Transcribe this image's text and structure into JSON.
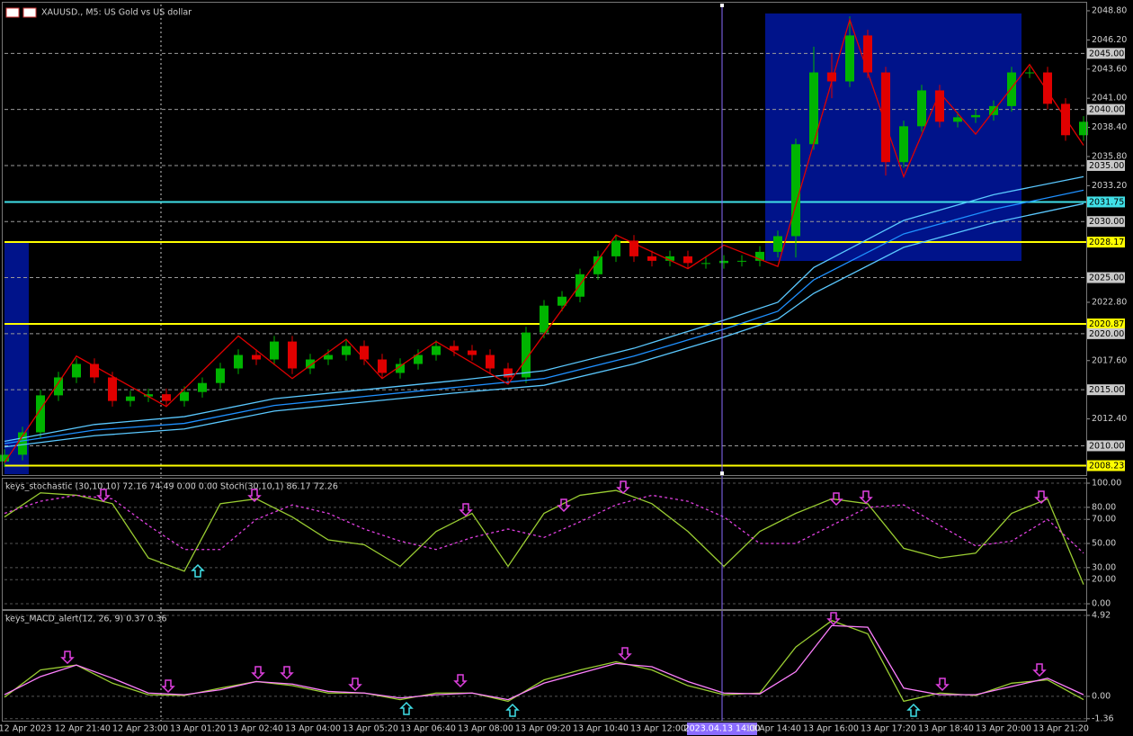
{
  "chart_data": [
    {
      "type": "candlestick",
      "title": "XAUUSD., M5: US Gold vs US dollar",
      "up_color": "#00b400",
      "down_color": "#e00000",
      "open": [
        2008.6,
        2009.2,
        2011.2,
        2014.5,
        2016.1,
        2017.3,
        2016.1,
        2014.0,
        2014.4,
        2014.6,
        2014.0,
        2014.8,
        2015.6,
        2016.9,
        2018.1,
        2017.7,
        2019.3,
        2016.9,
        2017.7,
        2018.1,
        2018.9,
        2017.7,
        2016.5,
        2017.3,
        2018.1,
        2018.9,
        2018.5,
        2018.1,
        2016.9,
        2016.1,
        2020.1,
        2022.5,
        2023.3,
        2025.3,
        2026.9,
        2028.3,
        2026.9,
        2026.5,
        2026.9,
        2026.3,
        2026.3,
        2026.5,
        2026.5,
        2027.3,
        2028.7,
        2036.9,
        2043.3,
        2042.5,
        2046.6,
        2043.3,
        2035.3,
        2038.5,
        2041.7,
        2038.9,
        2039.3,
        2039.5,
        2040.3,
        2043.3,
        2043.3,
        2040.5,
        2037.7
      ],
      "high": [
        2009.7,
        2011.7,
        2015.0,
        2016.6,
        2017.8,
        2017.8,
        2016.6,
        2014.9,
        2015.1,
        2015.1,
        2015.3,
        2016.1,
        2017.4,
        2018.6,
        2018.6,
        2019.8,
        2019.8,
        2018.2,
        2018.6,
        2019.4,
        2019.4,
        2018.2,
        2017.8,
        2018.6,
        2019.4,
        2019.4,
        2019.0,
        2018.6,
        2017.4,
        2020.6,
        2023.0,
        2023.8,
        2025.8,
        2027.4,
        2028.8,
        2028.8,
        2027.4,
        2027.4,
        2027.4,
        2026.8,
        2027.0,
        2027.0,
        2027.8,
        2029.2,
        2037.4,
        2045.6,
        2045.0,
        2048.3,
        2047.1,
        2043.8,
        2039.0,
        2042.2,
        2042.2,
        2039.8,
        2040.0,
        2040.8,
        2043.8,
        2043.8,
        2043.8,
        2041.0,
        2039.4
      ],
      "low": [
        2008.1,
        2008.7,
        2010.7,
        2014.0,
        2015.6,
        2015.6,
        2013.5,
        2013.5,
        2013.9,
        2013.5,
        2013.5,
        2014.3,
        2015.1,
        2016.4,
        2017.2,
        2017.2,
        2016.4,
        2016.4,
        2017.2,
        2017.6,
        2017.2,
        2016.0,
        2016.0,
        2016.8,
        2017.6,
        2018.0,
        2017.6,
        2016.4,
        2015.6,
        2015.6,
        2019.6,
        2022.0,
        2022.8,
        2024.8,
        2026.4,
        2026.4,
        2026.0,
        2026.0,
        2025.8,
        2025.8,
        2025.8,
        2026.0,
        2026.0,
        2026.8,
        2026.8,
        2036.4,
        2041.0,
        2042.0,
        2042.8,
        2034.1,
        2034.8,
        2038.0,
        2038.4,
        2038.4,
        2038.8,
        2039.0,
        2039.8,
        2042.8,
        2040.0,
        2037.2,
        2037.2
      ],
      "close": [
        2009.2,
        2011.2,
        2014.5,
        2016.1,
        2017.3,
        2016.1,
        2014.0,
        2014.4,
        2014.6,
        2014.0,
        2014.8,
        2015.6,
        2016.9,
        2018.1,
        2017.7,
        2019.3,
        2016.9,
        2017.7,
        2018.1,
        2018.9,
        2017.7,
        2016.5,
        2017.3,
        2018.1,
        2018.9,
        2018.5,
        2018.1,
        2016.9,
        2016.1,
        2020.1,
        2022.5,
        2023.3,
        2025.3,
        2026.9,
        2028.3,
        2026.9,
        2026.5,
        2026.9,
        2026.3,
        2026.3,
        2026.5,
        2026.5,
        2027.3,
        2028.7,
        2036.9,
        2043.3,
        2042.5,
        2046.6,
        2043.3,
        2035.3,
        2038.5,
        2041.7,
        2038.9,
        2039.3,
        2039.5,
        2040.3,
        2043.3,
        2043.3,
        2040.5,
        2037.7,
        2038.9
      ],
      "overlays": [
        {
          "color": "#5ac8ff",
          "x": [
            0,
            5,
            10,
            15,
            20,
            25,
            30,
            35,
            40,
            43,
            45,
            50,
            55,
            60
          ],
          "values": [
            2010.4,
            2011.9,
            2012.6,
            2014.2,
            2015.0,
            2015.8,
            2016.7,
            2018.7,
            2021.2,
            2022.8,
            2025.9,
            2030.1,
            2032.4,
            2034.0
          ]
        },
        {
          "color": "#1e90ff",
          "x": [
            0,
            5,
            10,
            15,
            20,
            25,
            30,
            35,
            40,
            43,
            45,
            50,
            55,
            60
          ],
          "values": [
            2010.2,
            2011.4,
            2012.0,
            2013.6,
            2014.4,
            2015.2,
            2016.0,
            2018.0,
            2020.4,
            2022.0,
            2024.8,
            2028.9,
            2031.1,
            2032.8
          ]
        },
        {
          "color": "#5ac8ff",
          "x": [
            0,
            5,
            10,
            15,
            20,
            25,
            30,
            35,
            40,
            43,
            45,
            50,
            55,
            60
          ],
          "values": [
            2009.9,
            2010.9,
            2011.5,
            2013.1,
            2013.9,
            2014.7,
            2015.4,
            2017.3,
            2019.7,
            2021.3,
            2023.6,
            2027.7,
            2029.9,
            2031.6
          ]
        },
        {
          "color": "#e00000",
          "x": [
            0,
            4,
            9,
            13,
            16,
            19,
            21,
            24,
            28,
            34,
            38,
            40,
            43,
            47,
            50,
            52,
            54,
            57,
            60
          ],
          "values": [
            2008.5,
            2018.0,
            2013.5,
            2019.8,
            2016.0,
            2019.5,
            2016.0,
            2019.3,
            2015.5,
            2028.8,
            2025.8,
            2027.9,
            2026.0,
            2048.0,
            2034.0,
            2041.5,
            2037.8,
            2044.0,
            2036.8
          ]
        }
      ],
      "ylim": [
        2007.47,
        2049.36
      ],
      "yticks": [
        {
          "value": 2048.8,
          "label": "2048.80"
        },
        {
          "value": 2046.2,
          "label": "2046.20"
        },
        {
          "value": 2043.6,
          "label": "2043.60"
        },
        {
          "value": 2041,
          "label": "2041.00"
        },
        {
          "value": 2038.4,
          "label": "2038.40"
        },
        {
          "value": 2035.8,
          "label": "2035.80"
        },
        {
          "value": 2033.2,
          "label": "2033.20"
        },
        {
          "value": 2022.8,
          "label": "2022.80"
        },
        {
          "value": 2017.6,
          "label": "2017.60"
        },
        {
          "value": 2012.4,
          "label": "2012.40"
        }
      ],
      "levels": [
        {
          "value": 2045,
          "label": "2045.00",
          "color": "#9a9a9a"
        },
        {
          "value": 2040,
          "label": "2040.00",
          "color": "#9a9a9a"
        },
        {
          "value": 2035,
          "label": "2035.00",
          "color": "#9a9a9a"
        },
        {
          "value": 2031.75,
          "label": "2031.75",
          "color": "#40e0e8"
        },
        {
          "value": 2030,
          "label": "2030.00",
          "color": "#9a9a9a"
        },
        {
          "value": 2028.17,
          "label": "2028.17",
          "color": "#ffff00"
        },
        {
          "value": 2025,
          "label": "2025.00",
          "color": "#9a9a9a"
        },
        {
          "value": 2020.87,
          "label": "2020.87",
          "color": "#ffff00"
        },
        {
          "value": 2020,
          "label": "2020.00",
          "color": "#9a9a9a"
        },
        {
          "value": 2015,
          "label": "2015.00",
          "color": "#9a9a9a"
        },
        {
          "value": 2010,
          "label": "2010.00",
          "color": "#9a9a9a"
        },
        {
          "value": 2008.23,
          "label": "2008.23",
          "color": "#ffff00"
        }
      ],
      "time_labels": [
        "12 Apr 2023",
        "12 Apr 21:40",
        "12 Apr 23:00",
        "13 Apr 01:20",
        "13 Apr 02:40",
        "13 Apr 04:00",
        "13 Apr 05:20",
        "13 Apr 06:40",
        "13 Apr 08:00",
        "13 Apr 09:20",
        "13 Apr 10:40",
        "13 Apr 12:00",
        null,
        "13 Apr 14:40",
        "13 Apr 16:00",
        "13 Apr 17:20",
        "13 Apr 18:40",
        "13 Apr 20:00",
        "13 Apr 21:20"
      ],
      "crosshair_time": "2023.04.13 14:00"
    },
    {
      "type": "line",
      "title": "keys_stochastic (30,10,10) 72.16 74.49 0.00 0.00 Stoch(30,10,1) 86.17 72.26",
      "series": [
        {
          "color": "#9acd32",
          "values": [
            72,
            92,
            90,
            83,
            38,
            27,
            83,
            87,
            72,
            53,
            49,
            31,
            60,
            75,
            31,
            75,
            90,
            94,
            83,
            60,
            31,
            60,
            75,
            87,
            83,
            46,
            38,
            42,
            75,
            87,
            16
          ]
        },
        {
          "color": "#e040e0",
          "dash": true,
          "values": [
            75,
            85,
            90,
            87,
            65,
            45,
            45,
            70,
            82,
            75,
            62,
            52,
            45,
            55,
            62,
            55,
            68,
            82,
            90,
            85,
            72,
            50,
            50,
            65,
            80,
            82,
            65,
            48,
            52,
            70,
            42
          ]
        }
      ],
      "ylim": [
        -3.7,
        103
      ],
      "yticks": [
        {
          "value": 100,
          "label": "100.00"
        },
        {
          "value": 80,
          "label": "80.00"
        },
        {
          "value": 70,
          "label": "70.00"
        },
        {
          "value": 50,
          "label": "50.00"
        },
        {
          "value": 30,
          "label": "30.00"
        },
        {
          "value": 20,
          "label": "20.00"
        },
        {
          "value": 0,
          "label": "0.00"
        }
      ]
    },
    {
      "type": "line",
      "title": "keys_MACD_alert(12, 26, 9) 0.37 0.36",
      "series": [
        {
          "color": "#9acd32",
          "values": [
            -0.05,
            1.6,
            1.9,
            0.8,
            0.1,
            0.05,
            0.5,
            0.9,
            0.65,
            0.2,
            0.2,
            -0.2,
            0.2,
            0.2,
            -0.3,
            1.0,
            1.6,
            2.1,
            1.6,
            0.65,
            0.1,
            0.2,
            3.0,
            4.6,
            3.8,
            -0.3,
            0.2,
            0.05,
            0.8,
            1.0,
            -0.2
          ]
        },
        {
          "color": "#ff80ff",
          "values": [
            0.1,
            1.2,
            1.9,
            1.1,
            0.2,
            0.1,
            0.4,
            0.9,
            0.75,
            0.3,
            0.2,
            -0.1,
            0.1,
            0.2,
            -0.2,
            0.8,
            1.4,
            2.0,
            1.8,
            0.9,
            0.2,
            0.15,
            1.5,
            4.3,
            4.2,
            0.5,
            0.1,
            0.1,
            0.6,
            1.1,
            0.1
          ]
        }
      ],
      "ylim": [
        -1.48,
        5.19
      ],
      "yticks": [
        4.92,
        {
          "value": 0,
          "label": "0.00"
        },
        -1.36
      ]
    }
  ]
}
